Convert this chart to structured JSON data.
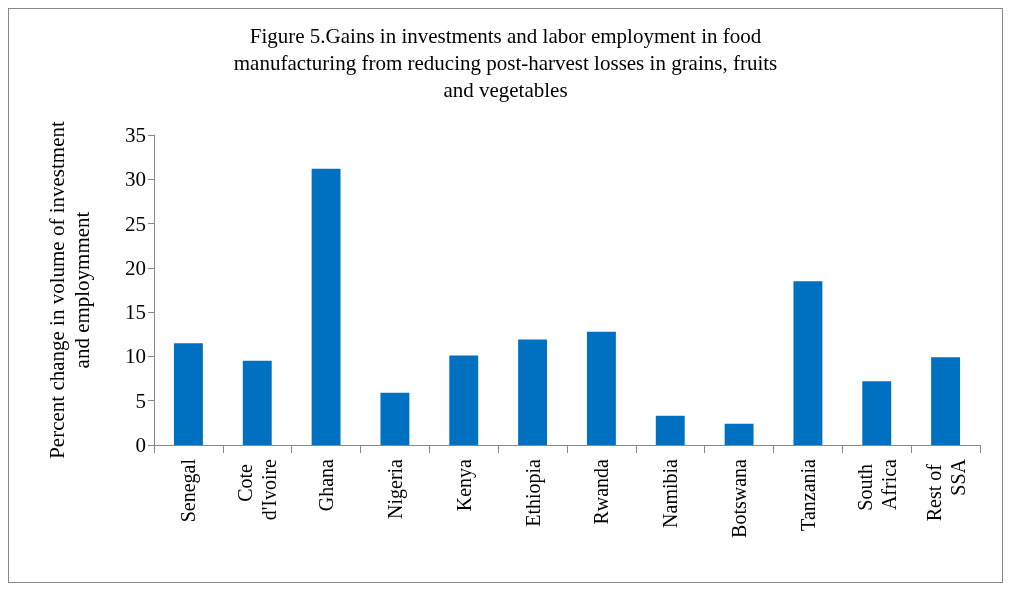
{
  "chart_data": {
    "type": "bar",
    "title": "Figure 5.Gains in investments and labor employment in food manufacturing from reducing post-harvest losses in grains, fruits and vegetables",
    "ylabel": "Percent change in volume of investment and employmment",
    "categories": [
      "Senegal",
      "Cote d'Ivoire",
      "Ghana",
      "Nigeria",
      "Kenya",
      "Ethiopia",
      "Rwanda",
      "Namibia",
      "Botswana",
      "Tanzania",
      "South Africa",
      "Rest of SSA"
    ],
    "values": [
      11.5,
      9.5,
      31.2,
      5.9,
      10.1,
      11.9,
      12.8,
      3.3,
      2.4,
      18.5,
      7.2,
      9.9
    ],
    "color": "#0070c0",
    "ylim": [
      0,
      35
    ],
    "yticks": [
      0,
      5,
      10,
      15,
      20,
      25,
      30,
      35
    ],
    "grid": false
  }
}
